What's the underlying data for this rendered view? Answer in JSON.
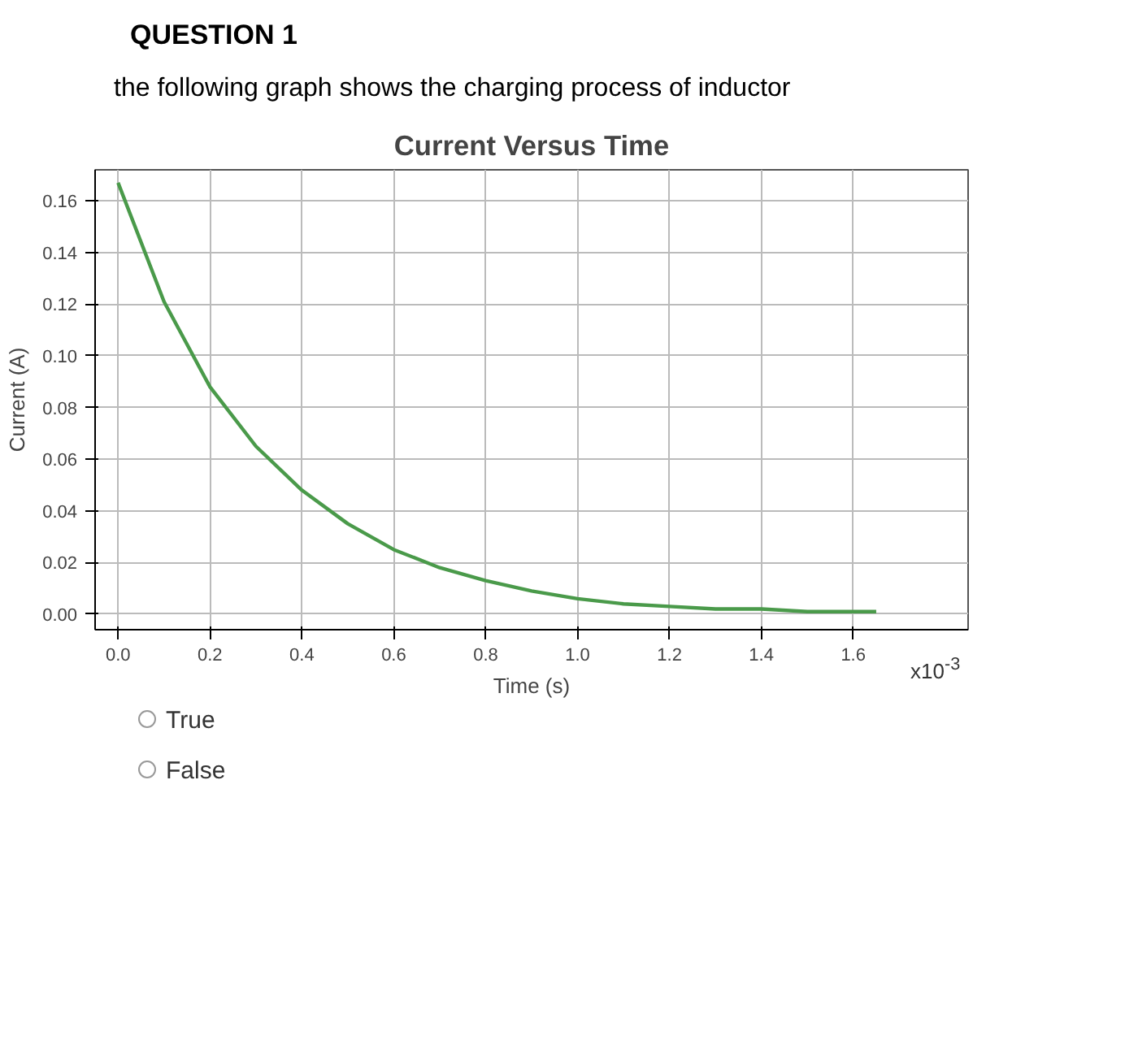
{
  "chart_data": {
    "type": "line",
    "title": "Current Versus Time",
    "xlabel": "Time (s)",
    "ylabel": "Current (A)",
    "annotations": [
      "QUESTION 1",
      "the following graph shows the charging process of inductor",
      "x10$^{-3}$",
      "True",
      "False"
    ],
    "x": [
      0.0,
      0.1,
      0.2,
      0.3,
      0.4,
      0.5,
      0.6,
      0.7,
      0.8,
      0.9,
      1.0,
      1.1,
      1.2,
      1.3,
      1.4,
      1.5,
      1.65
    ],
    "series": [
      {
        "color": "#4a9a4a",
        "values": [
          0.167,
          0.121,
          0.088,
          0.065,
          0.048,
          0.035,
          0.025,
          0.018,
          0.013,
          0.009,
          0.006,
          0.004,
          0.003,
          0.002,
          0.002,
          0.001,
          0.001
        ]
      }
    ],
    "xlim": [
      -0.05,
      1.85
    ],
    "ylim": [
      -0.006,
      0.172
    ],
    "xticks": [
      {
        "value": 0,
        "label": "0.0"
      },
      0.2,
      0.4,
      0.6,
      0.8,
      {
        "value": 1,
        "label": "1.0"
      },
      1.2,
      1.4,
      1.6
    ],
    "yticks": [
      {
        "value": 0,
        "label": "0.00"
      },
      0.02,
      0.04,
      0.06,
      0.08,
      {
        "value": 0.1,
        "label": "0.10"
      },
      0.12,
      0.14,
      0.16
    ],
    "grid": true,
    "marker": "none",
    "line_style": "solid"
  }
}
